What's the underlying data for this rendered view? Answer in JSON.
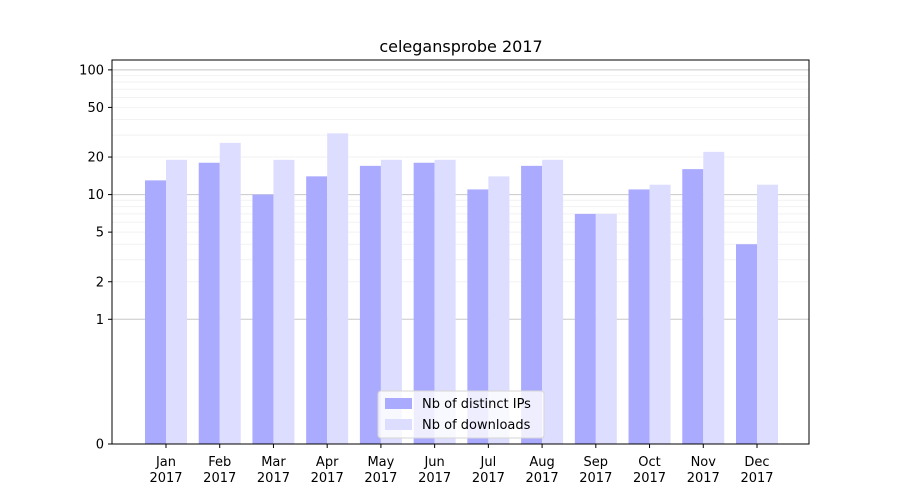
{
  "chart_data": {
    "type": "bar",
    "title": "celegansprobe 2017",
    "xlabel": "",
    "ylabel": "",
    "yscale": "symlog",
    "ylim": [
      0,
      120
    ],
    "grid": true,
    "legend_position": "bottom-center",
    "categories": [
      [
        "Jan",
        "2017"
      ],
      [
        "Feb",
        "2017"
      ],
      [
        "Mar",
        "2017"
      ],
      [
        "Apr",
        "2017"
      ],
      [
        "May",
        "2017"
      ],
      [
        "Jun",
        "2017"
      ],
      [
        "Jul",
        "2017"
      ],
      [
        "Aug",
        "2017"
      ],
      [
        "Sep",
        "2017"
      ],
      [
        "Oct",
        "2017"
      ],
      [
        "Nov",
        "2017"
      ],
      [
        "Dec",
        "2017"
      ]
    ],
    "yticks": [
      0,
      1,
      2,
      5,
      10,
      20,
      50,
      100
    ],
    "series": [
      {
        "name": "Nb of distinct IPs",
        "color": "#aaaaff",
        "values": [
          13,
          18,
          10,
          14,
          17,
          18,
          11,
          17,
          7,
          11,
          16,
          4
        ]
      },
      {
        "name": "Nb of downloads",
        "color": "#ddddff",
        "values": [
          19,
          26,
          19,
          31,
          19,
          19,
          14,
          19,
          7,
          12,
          22,
          12
        ]
      }
    ]
  }
}
